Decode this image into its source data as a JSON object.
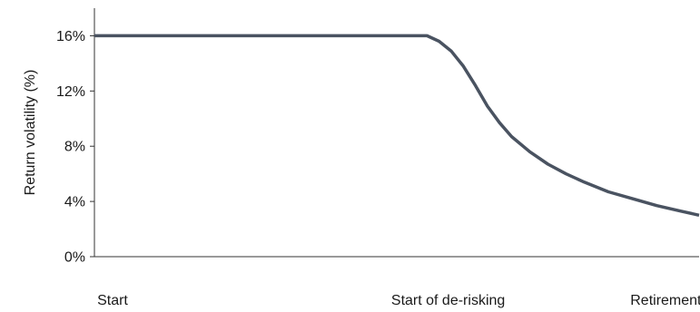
{
  "chart_data": {
    "type": "line",
    "title": "",
    "xlabel": "",
    "ylabel": "Return volatility (%)",
    "ylim": [
      0,
      18
    ],
    "y_ticks": [
      0,
      4,
      8,
      12,
      16
    ],
    "y_tick_labels": [
      "0%",
      "4%",
      "8%",
      "12%",
      "16%"
    ],
    "xlim": [
      0,
      1
    ],
    "x_tick_labels": [
      {
        "x": 0.03,
        "label": "Start"
      },
      {
        "x": 0.585,
        "label": "Start of de-risking"
      },
      {
        "x": 0.945,
        "label": "Retirement"
      }
    ],
    "grid": false,
    "legend": "none",
    "series": [
      {
        "color": "#4a5361",
        "points": [
          {
            "x": 0.0,
            "y": 16.0
          },
          {
            "x": 0.55,
            "y": 16.0
          },
          {
            "x": 0.57,
            "y": 15.6
          },
          {
            "x": 0.59,
            "y": 14.9
          },
          {
            "x": 0.61,
            "y": 13.8
          },
          {
            "x": 0.63,
            "y": 12.4
          },
          {
            "x": 0.65,
            "y": 10.9
          },
          {
            "x": 0.67,
            "y": 9.7
          },
          {
            "x": 0.69,
            "y": 8.7
          },
          {
            "x": 0.72,
            "y": 7.6
          },
          {
            "x": 0.75,
            "y": 6.7
          },
          {
            "x": 0.78,
            "y": 6.0
          },
          {
            "x": 0.81,
            "y": 5.4
          },
          {
            "x": 0.85,
            "y": 4.7
          },
          {
            "x": 0.89,
            "y": 4.2
          },
          {
            "x": 0.93,
            "y": 3.7
          },
          {
            "x": 0.97,
            "y": 3.3
          },
          {
            "x": 1.0,
            "y": 3.0
          }
        ]
      }
    ]
  }
}
